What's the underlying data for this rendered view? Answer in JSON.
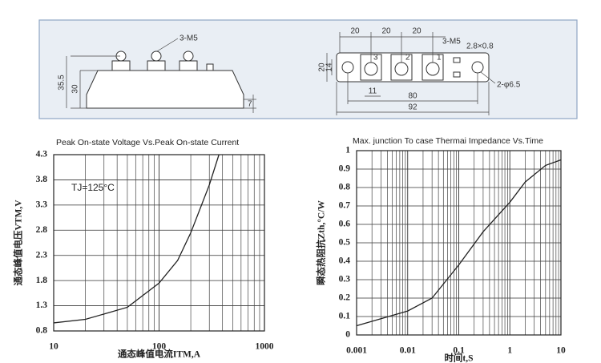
{
  "drawing": {
    "labels": [
      "3-M5",
      "35.5",
      "30",
      "7",
      "20",
      "20",
      "20",
      "3-M5",
      "2.8×0.8",
      "20",
      "14",
      "11",
      "80",
      "92",
      "2-φ6.5",
      "3",
      "2",
      "1"
    ]
  },
  "chart_data": [
    {
      "type": "line",
      "title": "Peak On-state Voltage Vs.Peak On-state Current",
      "xlabel": "通态峰值电流ITM,A",
      "ylabel": "通态峰值电压VTM,V",
      "annotation": "TJ=125°C",
      "xlog": true,
      "xlim": [
        10,
        1000
      ],
      "ylim": [
        0.8,
        4.3
      ],
      "xticks": [
        10,
        100,
        1000
      ],
      "xgrid": [
        20,
        30,
        40,
        50,
        60,
        70,
        80,
        90,
        200,
        300,
        400,
        500,
        600,
        700,
        800,
        900
      ],
      "yticks": [
        0.8,
        1.3,
        1.8,
        2.3,
        2.8,
        3.3,
        3.8,
        4.3
      ],
      "x": [
        10,
        20,
        50,
        100,
        150,
        200,
        300,
        370
      ],
      "values": [
        0.96,
        1.03,
        1.27,
        1.75,
        2.2,
        2.75,
        3.7,
        4.3
      ],
      "color": "#222"
    },
    {
      "type": "line",
      "title": "Max. junction To case Thermai Impedance Vs.Time",
      "xlabel": "时间t,S",
      "ylabel": "瞬态热阻抗Zth,°C/W",
      "xlog": true,
      "xlim": [
        0.001,
        10
      ],
      "ylim": [
        0,
        1
      ],
      "xticks": [
        0.001,
        0.01,
        0.1,
        1,
        10
      ],
      "xgrid": [
        0.002,
        0.003,
        0.004,
        0.005,
        0.006,
        0.007,
        0.008,
        0.009,
        0.02,
        0.03,
        0.04,
        0.05,
        0.06,
        0.07,
        0.08,
        0.09,
        0.2,
        0.3,
        0.4,
        0.5,
        0.6,
        0.7,
        0.8,
        0.9,
        2,
        3,
        4,
        5,
        6,
        7,
        8,
        9
      ],
      "yticks": [
        0,
        0.1,
        0.2,
        0.3,
        0.4,
        0.5,
        0.6,
        0.7,
        0.8,
        0.9,
        1
      ],
      "x": [
        0.001,
        0.01,
        0.03,
        0.1,
        0.3,
        1,
        2,
        5,
        10
      ],
      "values": [
        0.05,
        0.13,
        0.2,
        0.38,
        0.56,
        0.72,
        0.83,
        0.92,
        0.95
      ],
      "color": "#222"
    }
  ]
}
